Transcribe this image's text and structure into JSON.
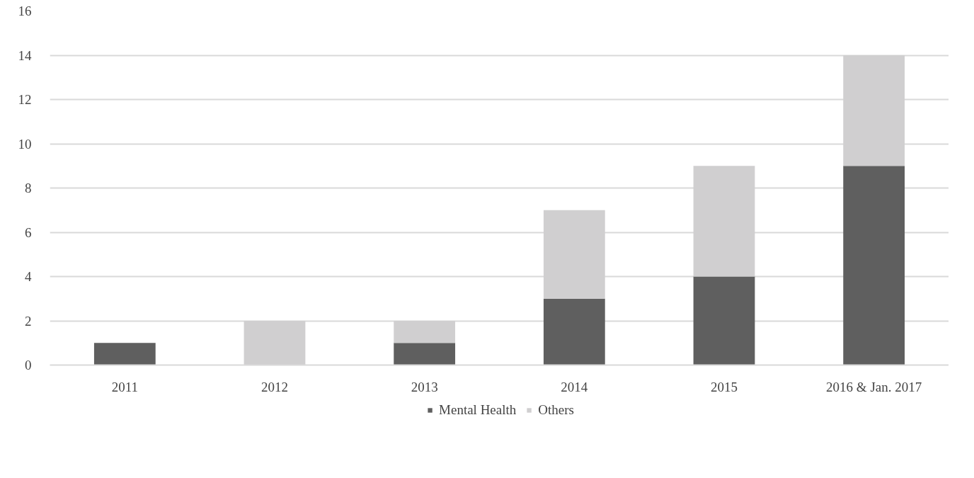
{
  "chart_data": {
    "type": "bar",
    "stacked": true,
    "categories": [
      "2011",
      "2012",
      "2013",
      "2014",
      "2015",
      "2016 & Jan. 2017"
    ],
    "series": [
      {
        "name": "Mental Health",
        "color": "#5f5f5f",
        "values": [
          1,
          0,
          1,
          3,
          4,
          9
        ]
      },
      {
        "name": "Others",
        "color": "#d0cfd0",
        "values": [
          0,
          2,
          1,
          4,
          5,
          5
        ]
      }
    ],
    "ylim": [
      0,
      16
    ],
    "yticks": [
      0,
      2,
      4,
      6,
      8,
      10,
      12,
      14,
      16
    ],
    "grid": "y",
    "legend": "bottom"
  }
}
